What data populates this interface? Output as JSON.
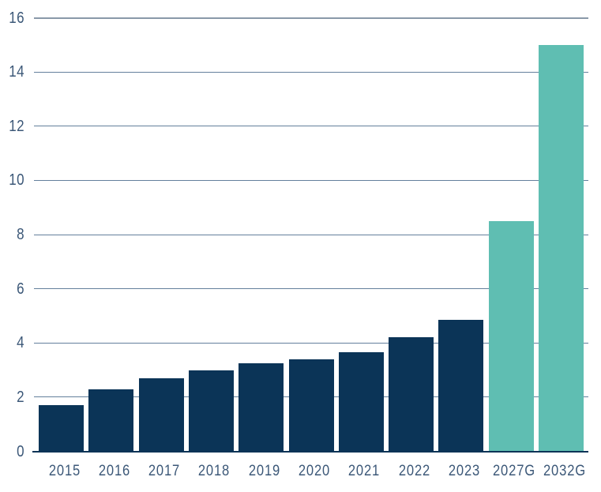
{
  "chart_data": {
    "type": "bar",
    "categories": [
      "2015",
      "2016",
      "2017",
      "2018",
      "2019",
      "2020",
      "2021",
      "2022",
      "2023",
      "2027G",
      "2032G"
    ],
    "values": [
      1.7,
      2.3,
      2.7,
      3.0,
      3.25,
      3.4,
      3.65,
      4.2,
      4.85,
      8.5,
      15
    ],
    "groups": [
      "actual",
      "actual",
      "actual",
      "actual",
      "actual",
      "actual",
      "actual",
      "actual",
      "actual",
      "forecast",
      "forecast"
    ],
    "title": "",
    "xlabel": "",
    "ylabel": "",
    "ylim": [
      0,
      16
    ],
    "yticks": [
      0,
      2,
      4,
      6,
      8,
      10,
      12,
      14,
      16
    ],
    "grid": true,
    "legend": "none",
    "colors": {
      "actual": "#0b3457",
      "forecast": "#5fbeb2",
      "gridline": "#64809c",
      "top_gridline": "#8a99a9",
      "axis_line": "#0b3457",
      "tick_label": "#3c5878"
    }
  }
}
